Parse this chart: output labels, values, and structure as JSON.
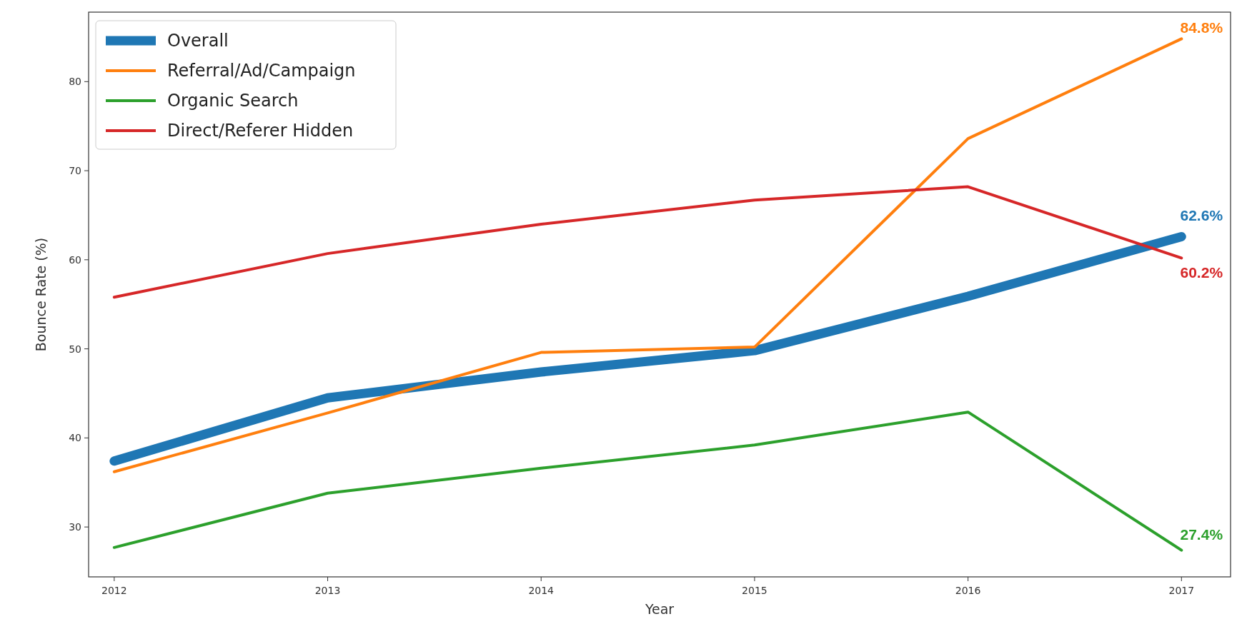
{
  "chart_data": {
    "type": "line",
    "xlabel": "Year",
    "ylabel": "Bounce Rate (%)",
    "x": [
      2012,
      2013,
      2014,
      2015,
      2016,
      2017
    ],
    "xlim": [
      2011.88,
      2017.23
    ],
    "xticks": [
      2012,
      2013,
      2014,
      2015,
      2016,
      2017
    ],
    "ylim": [
      24.4,
      87.8
    ],
    "yticks": [
      30,
      40,
      50,
      60,
      70,
      80
    ],
    "legend": "top left",
    "grid": false,
    "marker": "none",
    "line_style": "solid",
    "series": [
      {
        "name": "Overall",
        "color": "#1f77b4",
        "values": [
          37.4,
          44.5,
          47.4,
          49.8,
          55.9,
          62.6
        ],
        "value_labels": [
          null,
          null,
          null,
          null,
          null,
          "62.6%"
        ]
      },
      {
        "name": "Referral/Ad/Campaign",
        "color": "#ff7f0e",
        "values": [
          36.2,
          42.8,
          49.6,
          50.2,
          73.6,
          84.8
        ],
        "value_labels": [
          null,
          null,
          null,
          null,
          null,
          "84.8%"
        ]
      },
      {
        "name": "Organic Search",
        "color": "#2ca02c",
        "values": [
          27.7,
          33.8,
          36.6,
          39.2,
          42.9,
          27.4
        ],
        "value_labels": [
          null,
          null,
          null,
          null,
          null,
          "27.4%"
        ]
      },
      {
        "name": "Direct/Referer Hidden",
        "color": "#d62728",
        "values": [
          55.8,
          60.7,
          64.0,
          66.7,
          68.2,
          60.2
        ],
        "value_labels": [
          null,
          null,
          null,
          null,
          null,
          "60.2%"
        ]
      }
    ]
  }
}
